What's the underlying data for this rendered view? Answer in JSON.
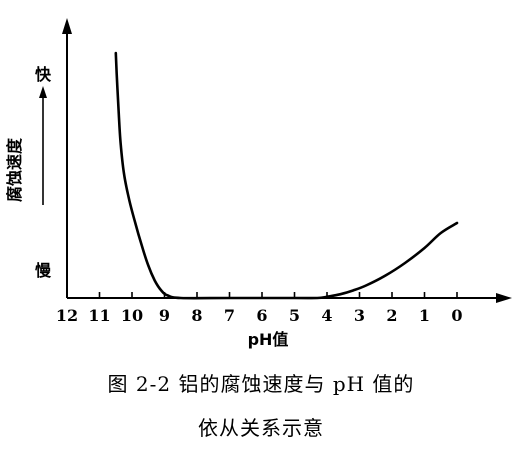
{
  "chart_data": {
    "type": "line",
    "xlabel": "pH值",
    "x_ticks": [
      12,
      11,
      10,
      9,
      8,
      7,
      6,
      5,
      4,
      3,
      2,
      1,
      0
    ],
    "x_reversed": true,
    "y_axis": {
      "label": "腐蚀速度",
      "top_label": "快",
      "bottom_label": "慢"
    },
    "series": [
      {
        "x": [
          10.5,
          10.45,
          10.4,
          10.35,
          10.25,
          10.1,
          9.9,
          9.7,
          9.5,
          9.3,
          9.1,
          8.9,
          8.5,
          7,
          5,
          4.3,
          4.0,
          3.6,
          3.2,
          2.8,
          2.2,
          1.6,
          1.0,
          0.5,
          0.0
        ],
        "y": [
          0.98,
          0.84,
          0.72,
          0.62,
          0.5,
          0.4,
          0.3,
          0.21,
          0.13,
          0.07,
          0.03,
          0.01,
          0.0,
          0.0,
          0.0,
          0.0,
          0.005,
          0.015,
          0.03,
          0.05,
          0.09,
          0.14,
          0.2,
          0.26,
          0.3
        ]
      }
    ],
    "ylim": [
      0,
      1
    ],
    "xlim": [
      12.2,
      -1.3
    ],
    "grid": false
  },
  "caption": {
    "line1": "图 2-2   铝的腐蚀速度与 pH 值的",
    "line2": "依从关系示意"
  }
}
